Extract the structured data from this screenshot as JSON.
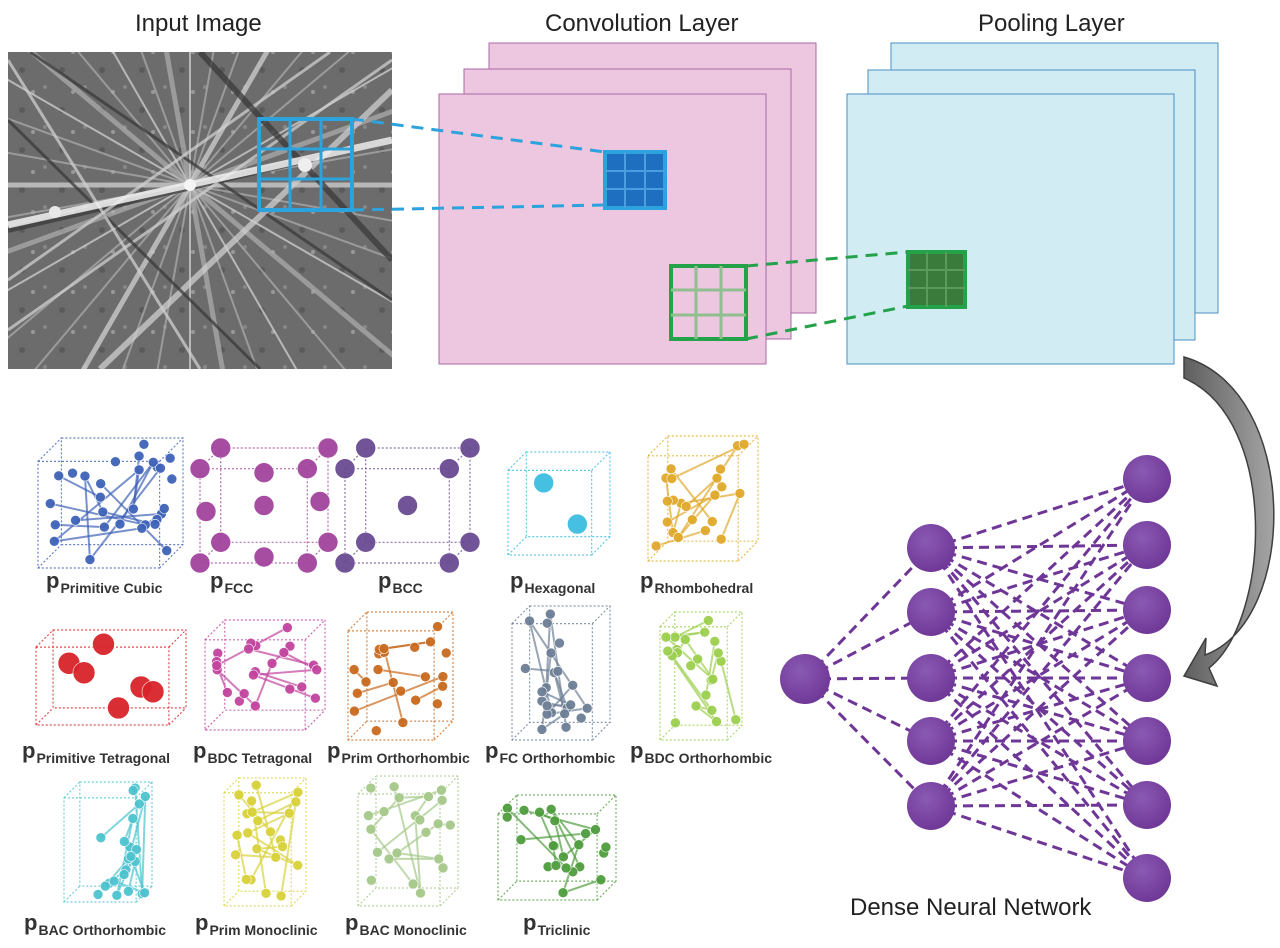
{
  "titles": {
    "input_image": "Input Image",
    "convolution_layer": "Convolution Layer",
    "pooling_layer": "Pooling Layer",
    "dense_network": "Dense Neural Network"
  },
  "crystal_prefix": "p",
  "crystals": [
    {
      "sub": "Primitive Cubic",
      "icon": "primitive-cubic-lattice-icon",
      "color": "#3f63b8"
    },
    {
      "sub": "FCC",
      "icon": "fcc-lattice-icon",
      "color": "#a2449e"
    },
    {
      "sub": "BCC",
      "icon": "bcc-lattice-icon",
      "color": "#6a4a92"
    },
    {
      "sub": "Hexagonal",
      "icon": "hexagonal-lattice-icon",
      "color": "#3cbde0"
    },
    {
      "sub": "Rhombohedral",
      "icon": "rhombohedral-lattice-icon",
      "color": "#e0a92a"
    },
    {
      "sub": "Primitive Tetragonal",
      "icon": "primitive-tetragonal-lattice-icon",
      "color": "#d9232b"
    },
    {
      "sub": "BDC Tetragonal",
      "icon": "bdc-tetragonal-lattice-icon",
      "color": "#c2449e"
    },
    {
      "sub": "Prim Orthorhombic",
      "icon": "prim-orthorhombic-lattice-icon",
      "color": "#c96a1e"
    },
    {
      "sub": "FC Orthorhombic",
      "icon": "fc-orthorhombic-lattice-icon",
      "color": "#6d7f96"
    },
    {
      "sub": "BDC Orthorhombic",
      "icon": "bdc-orthorhombic-lattice-icon",
      "color": "#9ccf4f"
    },
    {
      "sub": "BAC Orthorhombic",
      "icon": "bac-orthorhombic-lattice-icon",
      "color": "#4ec3cf"
    },
    {
      "sub": "Prim Monoclinic",
      "icon": "prim-monoclinic-lattice-icon",
      "color": "#d9d23a"
    },
    {
      "sub": "BAC Monoclinic",
      "icon": "bac-monoclinic-lattice-icon",
      "color": "#a6c98a"
    },
    {
      "sub": "Triclinic",
      "icon": "triclinic-lattice-icon",
      "color": "#4f9d3e"
    }
  ],
  "network": {
    "layers": [
      1,
      5,
      7
    ],
    "node_color": "#6e3696"
  },
  "colors": {
    "conv_fill": "#edc6e0",
    "conv_stroke": "#a86aa6",
    "pool_fill": "#d2ecf3",
    "pool_stroke": "#4a8fc4",
    "kernel_blue": "#2ca3dc",
    "kernel_green": "#24a24a",
    "arrow_gray": "#808080"
  }
}
